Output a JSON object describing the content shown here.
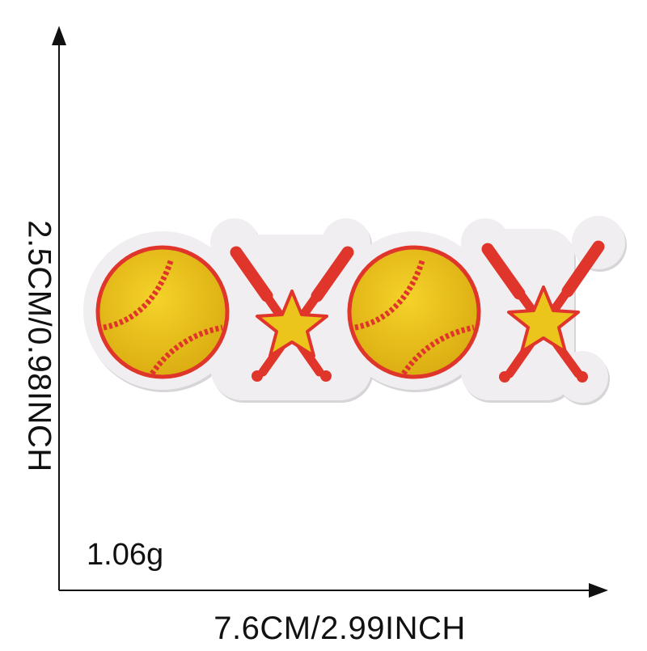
{
  "dimensions": {
    "height_text": "2.5CM/0.98INCH",
    "width_text": "7.6CM/2.99INCH",
    "weight_text": "1.06g"
  },
  "patch": {
    "motifs": [
      "softball",
      "crossed-bats-star",
      "softball",
      "crossed-bats-star"
    ],
    "colors": {
      "border": "#ece9ec",
      "ball": "#e9c21a",
      "stitch": "#e0352b",
      "bat": "#e0352b",
      "star": "#ecc51c"
    }
  }
}
